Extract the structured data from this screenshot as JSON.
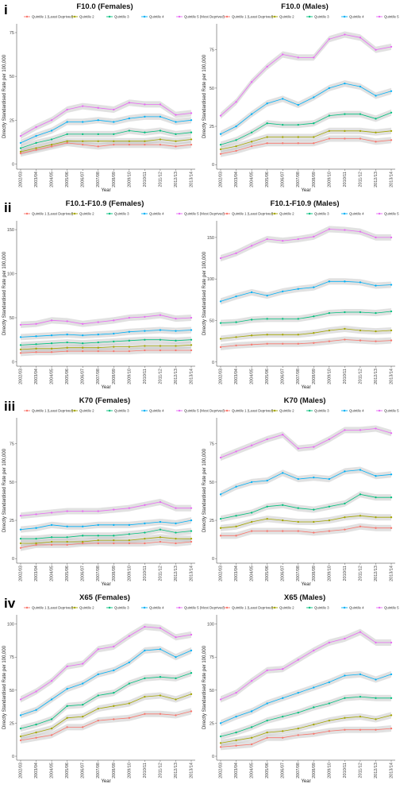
{
  "series_colors": [
    "#F8766D",
    "#A3A500",
    "#00BF7D",
    "#00B0F6",
    "#E76BF3"
  ],
  "row_labels": [
    "i",
    "ii",
    "iii",
    "iv"
  ],
  "chart_data": [
    {
      "type": "line",
      "title": "F10.0 (Females)",
      "xlabel": "Year",
      "ylabel": "Directly Standardised Rate per 100,000",
      "categories": [
        "2002/03",
        "2003/04",
        "2004/05",
        "2005/06",
        "2006/07",
        "2007/08",
        "2008/09",
        "2009/10",
        "2010/11",
        "2011/12",
        "2012/13",
        "2013/14"
      ],
      "ylim": [
        -3,
        80
      ],
      "yticks": [
        "0",
        "25",
        "50",
        "75"
      ],
      "legend_position": "top",
      "series": [
        {
          "name": "Quintile 1 (Least Deprived)",
          "values": [
            6,
            8,
            10,
            12,
            11,
            10,
            11,
            11,
            11,
            11,
            10,
            11
          ]
        },
        {
          "name": "Quintile 2",
          "values": [
            7,
            9,
            11,
            13,
            13,
            13,
            13,
            13,
            13,
            14,
            13,
            14
          ]
        },
        {
          "name": "Quintile 3",
          "values": [
            9,
            12,
            14,
            17,
            17,
            17,
            17,
            19,
            18,
            19,
            17,
            18
          ]
        },
        {
          "name": "Quintile 4",
          "values": [
            12,
            16,
            19,
            24,
            24,
            25,
            24,
            26,
            27,
            27,
            24,
            25
          ]
        },
        {
          "name": "Quintile 5 (Most Deprived)",
          "values": [
            16,
            21,
            25,
            31,
            33,
            32,
            31,
            35,
            34,
            34,
            28,
            29
          ]
        }
      ]
    },
    {
      "type": "line",
      "title": "F10.0 (Males)",
      "xlabel": "Year",
      "ylabel": "Directly Standardised Rate per 100,000",
      "categories": [
        "2002/03",
        "2003/04",
        "2004/05",
        "2005/06",
        "2006/07",
        "2007/08",
        "2008/09",
        "2009/10",
        "2010/11",
        "2011/12",
        "2012/13",
        "2013/14"
      ],
      "ylim": [
        -3,
        92
      ],
      "yticks": [
        "0",
        "25",
        "50",
        "75"
      ],
      "legend_position": "top",
      "series": [
        {
          "name": "Quintile 1 (Least Deprived)",
          "values": [
            7,
            9,
            12,
            14,
            14,
            14,
            14,
            17,
            17,
            17,
            15,
            16
          ]
        },
        {
          "name": "Quintile 2",
          "values": [
            10,
            12,
            15,
            18,
            18,
            18,
            18,
            22,
            22,
            22,
            21,
            22
          ]
        },
        {
          "name": "Quintile 3",
          "values": [
            13,
            16,
            21,
            27,
            26,
            26,
            27,
            32,
            33,
            33,
            30,
            34
          ]
        },
        {
          "name": "Quintile 4",
          "values": [
            20,
            25,
            33,
            40,
            43,
            39,
            44,
            50,
            53,
            51,
            45,
            48
          ]
        },
        {
          "name": "Quintile 5 (Most Deprived)",
          "values": [
            32,
            41,
            54,
            64,
            72,
            70,
            70,
            82,
            85,
            83,
            75,
            77
          ]
        }
      ]
    },
    {
      "type": "line",
      "title": "F10.1-F10.9 (Females)",
      "xlabel": "Year",
      "ylabel": "Directly Standardised Rate per 100,000",
      "categories": [
        "2002/03",
        "2003/04",
        "2004/05",
        "2005/06",
        "2006/07",
        "2007/08",
        "2008/09",
        "2009/10",
        "2010/11",
        "2011/12",
        "2012/13",
        "2013/14"
      ],
      "ylim": [
        -5,
        160
      ],
      "yticks": [
        "0",
        "50",
        "100",
        "150"
      ],
      "legend_position": "top",
      "series": [
        {
          "name": "Quintile 1 (Least Deprived)",
          "values": [
            10,
            11,
            11,
            12,
            12,
            12,
            12,
            12,
            13,
            13,
            13,
            13
          ]
        },
        {
          "name": "Quintile 2",
          "values": [
            14,
            15,
            15,
            16,
            16,
            16,
            17,
            17,
            18,
            18,
            18,
            19
          ]
        },
        {
          "name": "Quintile 3",
          "values": [
            19,
            20,
            21,
            22,
            21,
            22,
            23,
            24,
            25,
            25,
            24,
            25
          ]
        },
        {
          "name": "Quintile 4",
          "values": [
            28,
            29,
            30,
            31,
            30,
            31,
            32,
            34,
            35,
            36,
            35,
            36
          ]
        },
        {
          "name": "Quintile 5 (Most Deprived)",
          "values": [
            42,
            43,
            47,
            46,
            43,
            45,
            47,
            50,
            51,
            53,
            49,
            50
          ]
        }
      ]
    },
    {
      "type": "line",
      "title": "F10.1-F10.9 (Males)",
      "xlabel": "Year",
      "ylabel": "Directly Standardised Rate per 100,000",
      "categories": [
        "2002/03",
        "2003/04",
        "2004/05",
        "2005/06",
        "2006/07",
        "2007/08",
        "2008/09",
        "2009/10",
        "2010/11",
        "2011/12",
        "2012/13",
        "2013/14"
      ],
      "ylim": [
        -5,
        170
      ],
      "yticks": [
        "0",
        "50",
        "100",
        "150"
      ],
      "legend_position": "top",
      "series": [
        {
          "name": "Quintile 1 (Least Deprived)",
          "values": [
            18,
            20,
            21,
            22,
            22,
            22,
            23,
            25,
            27,
            26,
            25,
            26
          ]
        },
        {
          "name": "Quintile 2",
          "values": [
            28,
            30,
            32,
            33,
            33,
            33,
            35,
            38,
            40,
            38,
            37,
            38
          ]
        },
        {
          "name": "Quintile 3",
          "values": [
            47,
            48,
            51,
            52,
            52,
            52,
            55,
            59,
            60,
            60,
            59,
            61
          ]
        },
        {
          "name": "Quintile 4",
          "values": [
            73,
            79,
            84,
            80,
            85,
            88,
            90,
            97,
            97,
            96,
            92,
            93
          ]
        },
        {
          "name": "Quintile 5 (Most Deprived)",
          "values": [
            125,
            131,
            140,
            148,
            146,
            148,
            151,
            160,
            159,
            157,
            150,
            150
          ]
        }
      ]
    },
    {
      "type": "line",
      "title": "K70 (Females)",
      "xlabel": "Year",
      "ylabel": "Directly Standardised Rate per 100,000",
      "categories": [
        "2002/03",
        "2003/04",
        "2004/05",
        "2005/06",
        "2006/07",
        "2007/08",
        "2008/09",
        "2009/10",
        "2010/11",
        "2011/12",
        "2012/13",
        "2013/14"
      ],
      "ylim": [
        -3,
        92
      ],
      "yticks": [
        "0",
        "25",
        "50",
        "75"
      ],
      "legend_position": "top",
      "series": [
        {
          "name": "Quintile 1 (Least Deprived)",
          "values": [
            7,
            9,
            9,
            9,
            10,
            10,
            10,
            10,
            10,
            11,
            10,
            11
          ]
        },
        {
          "name": "Quintile 2",
          "values": [
            10,
            10,
            11,
            11,
            11,
            12,
            12,
            12,
            13,
            14,
            13,
            13
          ]
        },
        {
          "name": "Quintile 3",
          "values": [
            13,
            13,
            14,
            14,
            15,
            15,
            15,
            16,
            17,
            19,
            17,
            18
          ]
        },
        {
          "name": "Quintile 4",
          "values": [
            19,
            20,
            22,
            21,
            21,
            22,
            22,
            22,
            23,
            24,
            23,
            25
          ]
        },
        {
          "name": "Quintile 5 (Most Deprived)",
          "values": [
            28,
            29,
            30,
            31,
            31,
            31,
            32,
            33,
            35,
            37,
            33,
            33
          ]
        }
      ]
    },
    {
      "type": "line",
      "title": "K70 (Males)",
      "xlabel": "Year",
      "ylabel": "Directly Standardised Rate per 100,000",
      "categories": [
        "2002/03",
        "2003/04",
        "2004/05",
        "2005/06",
        "2006/07",
        "2007/08",
        "2008/09",
        "2009/10",
        "2010/11",
        "2011/12",
        "2012/13",
        "2013/14"
      ],
      "ylim": [
        -3,
        92
      ],
      "yticks": [
        "0",
        "25",
        "50",
        "75"
      ],
      "legend_position": "top",
      "series": [
        {
          "name": "Quintile 1 (Least Deprived)",
          "values": [
            15,
            15,
            18,
            18,
            18,
            18,
            17,
            18,
            19,
            21,
            20,
            20
          ]
        },
        {
          "name": "Quintile 2",
          "values": [
            20,
            21,
            24,
            26,
            25,
            24,
            24,
            25,
            27,
            28,
            27,
            27
          ]
        },
        {
          "name": "Quintile 3",
          "values": [
            26,
            28,
            30,
            34,
            35,
            33,
            32,
            34,
            36,
            42,
            40,
            40
          ]
        },
        {
          "name": "Quintile 4",
          "values": [
            42,
            47,
            50,
            51,
            56,
            52,
            53,
            52,
            57,
            58,
            54,
            55
          ]
        },
        {
          "name": "Quintile 5 (Most Deprived)",
          "values": [
            66,
            70,
            74,
            78,
            81,
            72,
            73,
            78,
            84,
            84,
            85,
            82
          ]
        }
      ]
    },
    {
      "type": "line",
      "title": "X65 (Females)",
      "xlabel": "Year",
      "ylabel": "Directly Standardised Rate per 100,000",
      "categories": [
        "2002/03",
        "2003/04",
        "2004/05",
        "2005/06",
        "2006/07",
        "2007/08",
        "2008/09",
        "2009/10",
        "2010/11",
        "2011/12",
        "2012/13",
        "2013/14"
      ],
      "ylim": [
        -3,
        107
      ],
      "yticks": [
        "0",
        "25",
        "50",
        "75",
        "100"
      ],
      "legend_position": "top",
      "series": [
        {
          "name": "Quintile 1 (Least Deprived)",
          "values": [
            12,
            14,
            16,
            22,
            22,
            27,
            28,
            29,
            32,
            32,
            31,
            34
          ]
        },
        {
          "name": "Quintile 2",
          "values": [
            15,
            18,
            21,
            29,
            30,
            36,
            38,
            40,
            45,
            46,
            43,
            47
          ]
        },
        {
          "name": "Quintile 3",
          "values": [
            21,
            24,
            28,
            38,
            39,
            46,
            48,
            55,
            59,
            60,
            59,
            63
          ]
        },
        {
          "name": "Quintile 4",
          "values": [
            31,
            35,
            43,
            51,
            55,
            62,
            65,
            71,
            80,
            81,
            75,
            80
          ]
        },
        {
          "name": "Quintile 5 (Most Deprived)",
          "values": [
            43,
            49,
            57,
            68,
            70,
            81,
            83,
            91,
            98,
            97,
            90,
            92
          ]
        }
      ]
    },
    {
      "type": "line",
      "title": "X65 (Males)",
      "xlabel": "Year",
      "ylabel": "Directly Standardised Rate per 100,000",
      "categories": [
        "2002/03",
        "2003/04",
        "2004/05",
        "2005/06",
        "2006/07",
        "2007/08",
        "2008/09",
        "2009/10",
        "2010/11",
        "2011/12",
        "2012/13",
        "2013/14"
      ],
      "ylim": [
        -3,
        107
      ],
      "yticks": [
        "0",
        "25",
        "50",
        "75",
        "100"
      ],
      "legend_position": "top",
      "series": [
        {
          "name": "Quintile 1 (Least Deprived)",
          "values": [
            7,
            8,
            9,
            14,
            14,
            16,
            17,
            19,
            20,
            20,
            20,
            21
          ]
        },
        {
          "name": "Quintile 2",
          "values": [
            10,
            12,
            14,
            18,
            19,
            21,
            24,
            27,
            29,
            30,
            28,
            31
          ]
        },
        {
          "name": "Quintile 3",
          "values": [
            15,
            18,
            22,
            27,
            30,
            33,
            37,
            40,
            44,
            45,
            44,
            44
          ]
        },
        {
          "name": "Quintile 4",
          "values": [
            25,
            30,
            34,
            40,
            44,
            48,
            52,
            56,
            61,
            62,
            58,
            62
          ]
        },
        {
          "name": "Quintile 5 (Most Deprived)",
          "values": [
            43,
            48,
            57,
            65,
            66,
            73,
            80,
            86,
            89,
            94,
            86,
            86
          ]
        }
      ]
    }
  ]
}
